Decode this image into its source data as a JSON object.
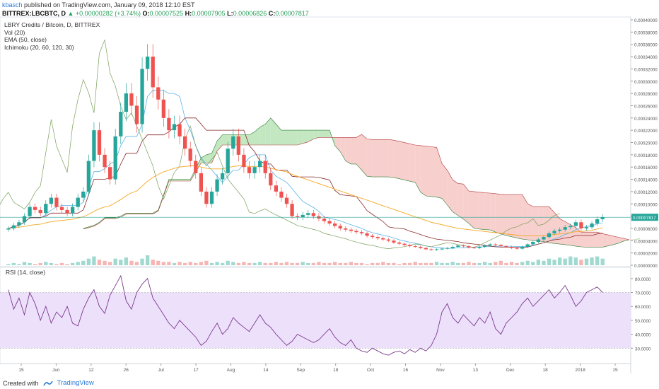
{
  "header": {
    "author": "kbasch",
    "published_text": "published on TradingView.com, January 09, 2018 12:10 EST",
    "symbol": "BITTREX:LBCBTC, D",
    "change": "▲ +0.00000282 (+3.74%)",
    "o_label": "O:",
    "o": "0.00007525",
    "h_label": "H:",
    "h": "0.00007905",
    "l_label": "L:",
    "l": "0.00006826",
    "c_label": "C:",
    "c": "0.00007817"
  },
  "legend": {
    "title": "LBRY Credits / Bitcoin, D, BITTREX",
    "vol": "Vol (20)",
    "ema": "EMA (50, close)",
    "ichimoku": "Ichimoku (20, 60, 120, 30)"
  },
  "rsi_label": "RSI (14, close)",
  "last_price_tag": "0.00007817",
  "footer": {
    "created_with": "Created with",
    "brand": "TradingView"
  },
  "colors": {
    "up": "#26a69a",
    "down": "#ef5350",
    "ema": "#f5a623",
    "tenkan": "#5ab4e8",
    "kijun": "#8b2b2b",
    "chikou": "#7aa05a",
    "cloud_bull": "#b9e3b6",
    "cloud_bear": "#f6c7c4",
    "rsi_line": "#7b3a8c",
    "rsi_band": "#ede0fb",
    "price_line": "#26a69a"
  },
  "chart_data": [
    {
      "type": "candlestick",
      "title": "LBRY Credits / Bitcoin, D, BITTREX",
      "ylim": [
        0.0,
        0.0004
      ],
      "y_ticks": [
        "0.00040000",
        "0.00038000",
        "0.00036000",
        "0.00034000",
        "0.00032000",
        "0.00030000",
        "0.00028000",
        "0.00026000",
        "0.00024000",
        "0.00022000",
        "0.00020000",
        "0.00018000",
        "0.00016000",
        "0.00014000",
        "0.00012000",
        "0.00010000",
        "0.00008000",
        "0.00006000",
        "0.00004000",
        "0.00002000",
        "0.00000000"
      ],
      "x_ticks": [
        "15",
        "Jun",
        "12",
        "26",
        "Jul",
        "17",
        "Aug",
        "14",
        "Sep",
        "18",
        "Oct",
        "16",
        "Nov",
        "13",
        "Dec",
        "18",
        "2018",
        "15"
      ],
      "close": [
        6e-05,
        6.5e-05,
        7e-05,
        8e-05,
        9.5e-05,
        9e-05,
        8.5e-05,
        0.0001,
        0.00011,
        9.5e-05,
        9e-05,
        8.5e-05,
        9.5e-05,
        0.00011,
        0.00012,
        0.00017,
        0.00022,
        0.00018,
        0.00016,
        0.00014,
        0.00021,
        0.00025,
        0.00028,
        0.00026,
        0.00023,
        0.00032,
        0.00034,
        0.00029,
        0.00027,
        0.00024,
        0.00022,
        0.00023,
        0.00021,
        0.00019,
        0.00017,
        0.00015,
        0.00012,
        0.0001,
        0.00012,
        0.00014,
        0.00015,
        0.00019,
        0.00021,
        0.00018,
        0.00016,
        0.00015,
        0.00016,
        0.00017,
        0.00015,
        0.00013,
        0.00012,
        0.00011,
        0.0001,
        8e-05,
        7.8e-05,
        8.2e-05,
        8.5e-05,
        8e-05,
        7.6e-05,
        7.2e-05,
        6.8e-05,
        6.4e-05,
        6e-05,
        5.8e-05,
        5.6e-05,
        5.4e-05,
        5.2e-05,
        4.8e-05,
        4.6e-05,
        4.4e-05,
        4.2e-05,
        4e-05,
        3.7e-05,
        3.5e-05,
        3.3e-05,
        3.1e-05,
        3e-05,
        2.8e-05,
        2.6e-05,
        2.5e-05,
        2.6e-05,
        2.7e-05,
        2.8e-05,
        3e-05,
        3.2e-05,
        3.1e-05,
        2.9e-05,
        2.8e-05,
        3e-05,
        3.2e-05,
        3.4e-05,
        3.3e-05,
        3.1e-05,
        3e-05,
        2.8e-05,
        2.7e-05,
        3e-05,
        3.4e-05,
        3.8e-05,
        4.2e-05,
        4.6e-05,
        5.2e-05,
        5.6e-05,
        5.8e-05,
        6.2e-05,
        6.4e-05,
        7e-05,
        6e-05,
        6.2e-05,
        6.8e-05,
        7.5e-05,
        7.817e-05
      ],
      "ema50": [
        6e-05,
        6.1e-05,
        6.2e-05,
        6.3e-05,
        6.5e-05,
        6.6e-05,
        6.7e-05,
        6.9e-05,
        7.1e-05,
        7.2e-05,
        7.3e-05,
        7.4e-05,
        7.5e-05,
        7.7e-05,
        7.9e-05,
        8.3e-05,
        8.8e-05,
        9.2e-05,
        9.5e-05,
        9.7e-05,
        0.000102,
        0.000107,
        0.000113,
        0.000118,
        0.000121,
        0.000129,
        0.000137,
        0.000143,
        0.000148,
        0.000152,
        0.000155,
        0.000158,
        0.00016,
        0.000161,
        0.000162,
        0.000162,
        0.00016,
        0.000158,
        0.000157,
        0.000157,
        0.000157,
        0.000159,
        0.000161,
        0.000162,
        0.000162,
        0.000161,
        0.000161,
        0.000161,
        0.00016,
        0.000158,
        0.000156,
        0.000154,
        0.000152,
        0.000148,
        0.000145,
        0.000142,
        0.000139,
        0.000136,
        0.000133,
        0.00013,
        0.000127,
        0.000124,
        0.000121,
        0.000118,
        0.000115,
        0.000112,
        0.000109,
        0.000106,
        0.000103,
        0.0001,
        9.7e-05,
        9.4e-05,
        9.1e-05,
        8.8e-05,
        8.5e-05,
        8.2e-05,
        7.9e-05,
        7.6e-05,
        7.3e-05,
        7e-05,
        6.8e-05,
        6.6e-05,
        6.4e-05,
        6.2e-05,
        6e-05,
        5.9e-05,
        5.8e-05,
        5.7e-05,
        5.6e-05,
        5.5e-05,
        5.4e-05,
        5.3e-05,
        5.2e-05,
        5.1e-05,
        5e-05,
        4.9e-05,
        4.8e-05,
        4.8e-05,
        4.8e-05,
        4.8e-05,
        4.8e-05,
        4.9e-05,
        5e-05,
        5.1e-05,
        5.2e-05,
        5.3e-05,
        5.5e-05,
        5.5e-05,
        5.6e-05,
        5.7e-05,
        5.9e-05,
        6.1e-05
      ],
      "volume": [
        1,
        2,
        1,
        3,
        2,
        1,
        2,
        3,
        2,
        1,
        2,
        1,
        2,
        3,
        4,
        6,
        8,
        5,
        4,
        3,
        6,
        5,
        7,
        4,
        3,
        6,
        9,
        5,
        4,
        3,
        3,
        2,
        3,
        2,
        3,
        2,
        3,
        4,
        2,
        3,
        2,
        4,
        3,
        2,
        3,
        2,
        2,
        3,
        2,
        2,
        3,
        2,
        3,
        2,
        2,
        3,
        2,
        2,
        3,
        2,
        2,
        3,
        2,
        2,
        3,
        2,
        2,
        1,
        2,
        2,
        3,
        2,
        2,
        1,
        2,
        2,
        3,
        2,
        2,
        2,
        3,
        2,
        2,
        3,
        2,
        2,
        3,
        2,
        2,
        3,
        2,
        3,
        4,
        2,
        3,
        2,
        3,
        4,
        3,
        5,
        4,
        6,
        5,
        7,
        6,
        8,
        7,
        5,
        6,
        7,
        8,
        6
      ],
      "rsi": [
        72,
        58,
        66,
        54,
        70,
        62,
        50,
        60,
        48,
        56,
        52,
        60,
        48,
        46,
        58,
        66,
        72,
        60,
        55,
        68,
        75,
        82,
        64,
        58,
        70,
        76,
        80,
        66,
        60,
        54,
        48,
        44,
        50,
        46,
        42,
        38,
        32,
        35,
        42,
        48,
        40,
        44,
        52,
        48,
        45,
        42,
        48,
        54,
        48,
        45,
        40,
        36,
        32,
        35,
        40,
        38,
        36,
        34,
        36,
        40,
        44,
        38,
        34,
        32,
        36,
        30,
        28,
        27,
        30,
        28,
        26,
        25,
        27,
        28,
        26,
        29,
        27,
        30,
        28,
        32,
        40,
        56,
        62,
        52,
        48,
        54,
        50,
        46,
        52,
        48,
        56,
        44,
        40,
        48,
        52,
        56,
        62,
        66,
        60,
        64,
        68,
        72,
        66,
        70,
        75,
        68,
        60,
        64,
        70,
        72,
        74,
        70
      ],
      "rsi_ylim": [
        20,
        85
      ],
      "rsi_ticks": [
        "80.0000",
        "70.0000",
        "60.0000",
        "50.0000",
        "40.0000",
        "30.0000"
      ],
      "rsi_band": [
        30,
        70
      ]
    }
  ]
}
